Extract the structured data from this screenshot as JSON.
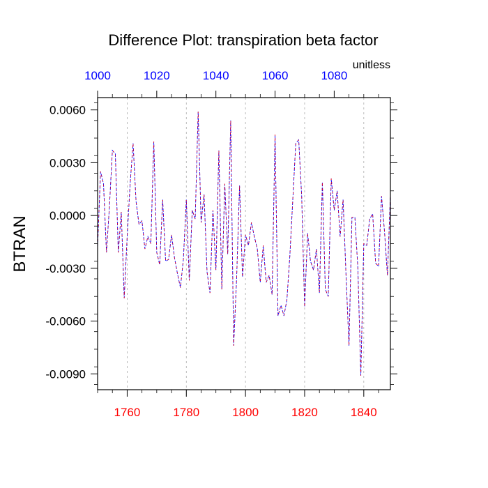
{
  "chart_data": {
    "type": "line",
    "title": "Difference Plot: transpiration beta factor",
    "units_label": "unitless",
    "ylabel": "BTRAN",
    "xlim": [
      1750,
      1849
    ],
    "ylim": [
      -0.0099,
      0.0067
    ],
    "y_ticks": [
      "0.0060",
      "0.0030",
      "0.0000",
      "-0.0030",
      "-0.0060",
      "-0.0090"
    ],
    "y_tick_values": [
      0.006,
      0.003,
      0.0,
      -0.003,
      -0.006,
      -0.009
    ],
    "x_bottom_ticks": [
      "1760",
      "1780",
      "1800",
      "1820",
      "1840"
    ],
    "x_bottom_tick_values": [
      1760,
      1780,
      1800,
      1820,
      1840
    ],
    "x_top_ticks": [
      "1000",
      "1020",
      "1040",
      "1060",
      "1080"
    ],
    "x_top_tick_values": [
      1000,
      1020,
      1040,
      1060,
      1080
    ],
    "x_top_offset": 750,
    "x_bottom_color": "#ff0000",
    "x_top_color": "#0000ff",
    "grid": "vertical dashed",
    "series": [
      {
        "color": "#0000ff",
        "style": "dashed",
        "x": [
          1750,
          1751,
          1752,
          1753,
          1754,
          1755,
          1756,
          1757,
          1758,
          1759,
          1760,
          1761,
          1762,
          1763,
          1764,
          1765,
          1766,
          1767,
          1768,
          1769,
          1770,
          1771,
          1772,
          1773,
          1774,
          1775,
          1776,
          1777,
          1778,
          1779,
          1780,
          1781,
          1782,
          1783,
          1784,
          1785,
          1786,
          1787,
          1788,
          1789,
          1790,
          1791,
          1792,
          1793,
          1794,
          1795,
          1796,
          1797,
          1798,
          1799,
          1800,
          1801,
          1802,
          1803,
          1804,
          1805,
          1806,
          1807,
          1808,
          1809,
          1810,
          1811,
          1812,
          1813,
          1814,
          1815,
          1816,
          1817,
          1818,
          1819,
          1820,
          1821,
          1822,
          1823,
          1824,
          1825,
          1826,
          1827,
          1828,
          1829,
          1830,
          1831,
          1832,
          1833,
          1834,
          1835,
          1836,
          1837,
          1838,
          1839,
          1840,
          1841,
          1842,
          1843,
          1844,
          1845,
          1846,
          1847,
          1848,
          1849
        ],
        "y": [
          -0.0018,
          0.0025,
          0.0018,
          -0.0021,
          0.0005,
          0.0037,
          0.0035,
          -0.0021,
          0.0002,
          -0.0047,
          -0.0012,
          0.0018,
          0.0041,
          0.0008,
          -0.0005,
          -0.0003,
          -0.0019,
          -0.0012,
          -0.0016,
          0.0042,
          -0.0021,
          -0.0028,
          0.0009,
          -0.0026,
          -0.0025,
          -0.0011,
          -0.0024,
          -0.0033,
          -0.0041,
          -0.0025,
          0.0009,
          -0.0037,
          0.0003,
          -0.0002,
          0.0059,
          -0.0004,
          0.0012,
          -0.0032,
          -0.0044,
          0.0003,
          -0.0031,
          0.0037,
          -0.0042,
          0.0018,
          -0.0022,
          0.0054,
          -0.0074,
          -0.0036,
          0.0017,
          -0.0035,
          -0.0011,
          -0.0017,
          -0.0004,
          -0.0012,
          -0.0019,
          -0.0038,
          -0.0017,
          -0.0038,
          -0.0034,
          -0.0045,
          0.0046,
          -0.0057,
          -0.0051,
          -0.0057,
          -0.0048,
          -0.0023,
          0.0009,
          0.0041,
          0.0043,
          0.0011,
          -0.0052,
          -0.001,
          -0.0026,
          -0.0031,
          -0.0019,
          -0.0044,
          0.0019,
          -0.0042,
          -0.0046,
          0.0021,
          0.0003,
          0.0014,
          -0.0012,
          0.0009,
          -0.0034,
          -0.0074,
          -0.0001,
          -0.0001,
          -0.003,
          -0.0091,
          -0.0016,
          -0.0017,
          -0.0002,
          0.0001,
          -0.0027,
          -0.0029,
          0.0011,
          -0.0009,
          -0.0034,
          0.0012
        ]
      },
      {
        "color": "#ff0000",
        "style": "dashed",
        "x": [
          1750,
          1751,
          1752,
          1753,
          1754,
          1755,
          1756,
          1757,
          1758,
          1759,
          1760,
          1761,
          1762,
          1763,
          1764,
          1765,
          1766,
          1767,
          1768,
          1769,
          1770,
          1771,
          1772,
          1773,
          1774,
          1775,
          1776,
          1777,
          1778,
          1779,
          1780,
          1781,
          1782,
          1783,
          1784,
          1785,
          1786,
          1787,
          1788,
          1789,
          1790,
          1791,
          1792,
          1793,
          1794,
          1795,
          1796,
          1797,
          1798,
          1799,
          1800,
          1801,
          1802,
          1803,
          1804,
          1805,
          1806,
          1807,
          1808,
          1809,
          1810,
          1811,
          1812,
          1813,
          1814,
          1815,
          1816,
          1817,
          1818,
          1819,
          1820,
          1821,
          1822,
          1823,
          1824,
          1825,
          1826,
          1827,
          1828,
          1829,
          1830,
          1831,
          1832,
          1833,
          1834,
          1835,
          1836,
          1837,
          1838,
          1839,
          1840,
          1841,
          1842,
          1843,
          1844,
          1845,
          1846,
          1847,
          1848,
          1849
        ],
        "y": [
          -0.0018,
          0.0025,
          0.0018,
          -0.0021,
          0.0005,
          0.0037,
          0.0035,
          -0.0021,
          0.0002,
          -0.0047,
          -0.0012,
          0.0018,
          0.0041,
          0.0008,
          -0.0005,
          -0.0003,
          -0.0019,
          -0.0012,
          -0.0016,
          0.0042,
          -0.0021,
          -0.0028,
          0.0009,
          -0.0026,
          -0.0025,
          -0.0011,
          -0.0024,
          -0.0033,
          -0.0041,
          -0.0025,
          0.0009,
          -0.0037,
          0.0003,
          -0.0002,
          0.0059,
          -0.0004,
          0.0012,
          -0.0032,
          -0.0044,
          0.0003,
          -0.0031,
          0.0037,
          -0.0042,
          0.0018,
          -0.0022,
          0.0054,
          -0.0074,
          -0.0036,
          0.0017,
          -0.0035,
          -0.0011,
          -0.0017,
          -0.0004,
          -0.0012,
          -0.0019,
          -0.0038,
          -0.0017,
          -0.0038,
          -0.0034,
          -0.0045,
          0.0046,
          -0.0057,
          -0.0051,
          -0.0057,
          -0.0048,
          -0.0023,
          0.0009,
          0.0041,
          0.0043,
          0.0011,
          -0.0052,
          -0.001,
          -0.0026,
          -0.0031,
          -0.0019,
          -0.0044,
          0.0019,
          -0.0042,
          -0.0046,
          0.0021,
          0.0003,
          0.0014,
          -0.0012,
          0.0009,
          -0.0034,
          -0.0074,
          -0.0001,
          -0.0001,
          -0.003,
          -0.0091,
          -0.0016,
          -0.0017,
          -0.0002,
          0.0001,
          -0.0027,
          -0.0029,
          0.0011,
          -0.0009,
          -0.0034,
          0.0012
        ]
      }
    ]
  }
}
